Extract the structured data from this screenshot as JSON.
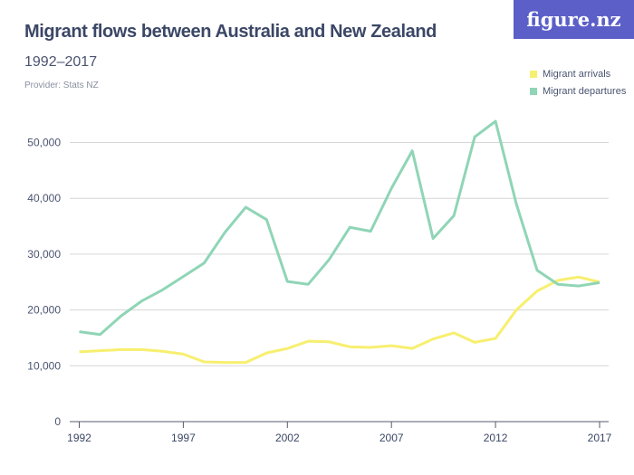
{
  "header": {
    "title": "Migrant flows between Australia and New Zealand",
    "subtitle": "1992–2017",
    "provider": "Provider: Stats NZ",
    "logo": "figure.nz"
  },
  "colors": {
    "arrivals": "#f7ef6f",
    "departures": "#8fd5b6"
  },
  "chart_data": {
    "type": "line",
    "x": [
      1992,
      1993,
      1994,
      1995,
      1996,
      1997,
      1998,
      1999,
      2000,
      2001,
      2002,
      2003,
      2004,
      2005,
      2006,
      2007,
      2008,
      2009,
      2010,
      2011,
      2012,
      2013,
      2014,
      2015,
      2016,
      2017
    ],
    "series": [
      {
        "name": "Migrant arrivals",
        "values": [
          12500,
          12700,
          12900,
          12900,
          12600,
          12100,
          10700,
          10600,
          10600,
          12300,
          13100,
          14400,
          14300,
          13400,
          13300,
          13600,
          13100,
          14800,
          15900,
          14200,
          14900,
          20000,
          23400,
          25300,
          25900,
          25000
        ]
      },
      {
        "name": "Migrant departures",
        "values": [
          16100,
          15600,
          18900,
          21600,
          23600,
          26000,
          28400,
          33900,
          38400,
          36200,
          25100,
          24600,
          29000,
          34800,
          34100,
          41800,
          48500,
          32800,
          36900,
          51000,
          53800,
          39000,
          27100,
          24600,
          24300,
          24900
        ]
      }
    ],
    "xticks": [
      "1992",
      "1997",
      "2002",
      "2007",
      "2012",
      "2017"
    ],
    "yticks": [
      "0",
      "10,000",
      "20,000",
      "30,000",
      "40,000",
      "50,000"
    ],
    "ylim": [
      0,
      50000
    ],
    "xlim": [
      1992,
      2017
    ],
    "grid": true,
    "legend": "top-right"
  }
}
